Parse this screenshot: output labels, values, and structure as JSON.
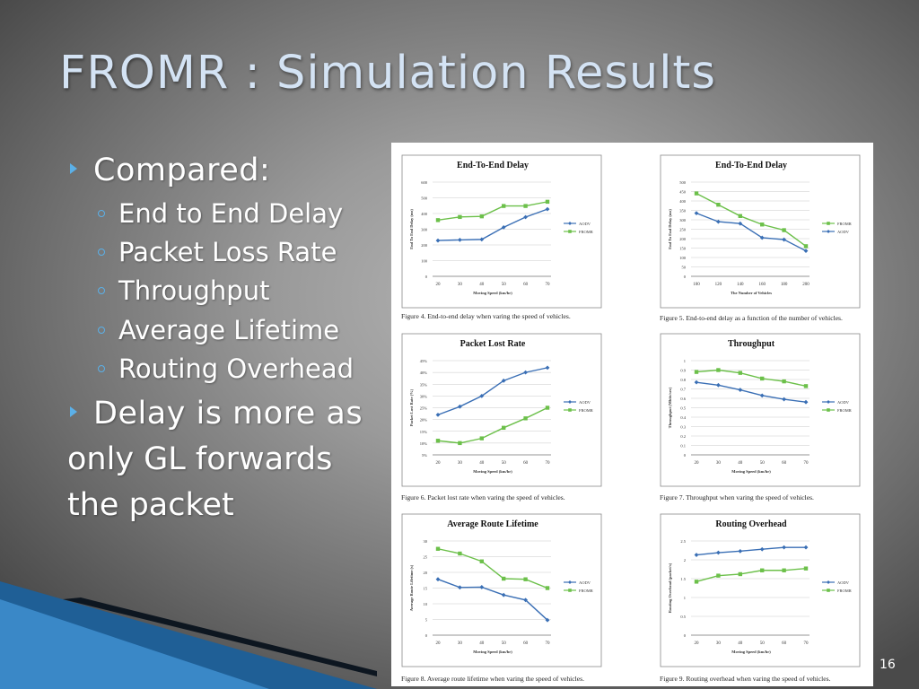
{
  "slide": {
    "title": "FROMR : Simulation Results",
    "bullets": [
      {
        "text": "Compared:",
        "subs": [
          "End to End Delay",
          "Packet Loss Rate",
          "Throughput",
          "Average Lifetime",
          "Routing Overhead"
        ]
      },
      {
        "text": "Delay is more as",
        "continuation": [
          "only GL forwards",
          "the packet"
        ]
      }
    ],
    "page_number": "16"
  },
  "colors": {
    "title": "#d4e3f4",
    "bullet": "#5bb0e8",
    "aodv": "#3a6fb5",
    "fromr": "#6cc04a",
    "stripe": "#1f5f96"
  },
  "chart_data": [
    {
      "type": "line",
      "title": "End-To-End Delay",
      "xlabel": "Moving Speed (km/hr)",
      "ylabel": "End To End Delay (ms)",
      "x": [
        20,
        30,
        40,
        50,
        60,
        70
      ],
      "xticks": [
        "20",
        "30",
        "40",
        "50",
        "60",
        "70"
      ],
      "ylim": [
        0,
        600
      ],
      "yticks": [
        0,
        100,
        200,
        300,
        400,
        500,
        600
      ],
      "series": [
        {
          "name": "AODV",
          "values": [
            228,
            232,
            235,
            312,
            377,
            428
          ]
        },
        {
          "name": "FROMR",
          "values": [
            358,
            378,
            382,
            448,
            448,
            475
          ]
        }
      ],
      "legend": "right",
      "caption": "Figure 4.   End-to-end delay when varing the speed of vehicles."
    },
    {
      "type": "line",
      "title": "End-To-End Delay",
      "xlabel": "The Number of Vehicles",
      "ylabel": "End To End Delay (ms)",
      "x": [
        100,
        120,
        140,
        160,
        180,
        200
      ],
      "xticks": [
        "100",
        "120",
        "140",
        "160",
        "180",
        "200"
      ],
      "ylim": [
        0,
        500
      ],
      "yticks": [
        0,
        50,
        100,
        150,
        200,
        250,
        300,
        350,
        400,
        450,
        500
      ],
      "series": [
        {
          "name": "FROMR",
          "values": [
            440,
            380,
            320,
            275,
            245,
            160
          ]
        },
        {
          "name": "AODV",
          "values": [
            335,
            290,
            280,
            205,
            195,
            135
          ]
        }
      ],
      "legend": "right",
      "caption": "Figure 5.   End-to-end delay as a function of the number of vehicles."
    },
    {
      "type": "line",
      "title": "Packet Lost Rate",
      "xlabel": "Moving Speed (km/hr)",
      "ylabel": "Packet Lost Rate (%)",
      "x": [
        20,
        30,
        40,
        50,
        60,
        70
      ],
      "xticks": [
        "20",
        "30",
        "40",
        "50",
        "60",
        "70"
      ],
      "ylim": [
        5,
        45
      ],
      "yticks": [
        5,
        10,
        15,
        20,
        25,
        30,
        35,
        40,
        45
      ],
      "ytick_labels": [
        "5%",
        "10%",
        "15%",
        "20%",
        "25%",
        "30%",
        "35%",
        "40%",
        "45%"
      ],
      "series": [
        {
          "name": "AODV",
          "values": [
            22,
            25.5,
            30,
            36.5,
            40,
            42
          ]
        },
        {
          "name": "FROMR",
          "values": [
            11,
            10,
            12,
            16.5,
            20.5,
            25
          ]
        }
      ],
      "legend": "right",
      "caption": "Figure 6.   Packet lost rate when varing the speed of vehicles."
    },
    {
      "type": "line",
      "title": "Throughput",
      "xlabel": "Moving Speed (km/hr)",
      "ylabel": "Throughput (Mbits/sec)",
      "x": [
        20,
        30,
        40,
        50,
        60,
        70
      ],
      "xticks": [
        "20",
        "30",
        "40",
        "50",
        "60",
        "70"
      ],
      "ylim": [
        0,
        1
      ],
      "yticks": [
        0,
        0.1,
        0.2,
        0.3,
        0.4,
        0.5,
        0.6,
        0.7,
        0.8,
        0.9,
        1
      ],
      "ytick_labels": [
        "0",
        "0.1",
        "0.2",
        "0.3",
        "0.4",
        "0.5",
        "0.6",
        "0.7",
        "0.8",
        "0.9",
        "1"
      ],
      "series": [
        {
          "name": "AODV",
          "values": [
            0.77,
            0.74,
            0.69,
            0.63,
            0.59,
            0.56
          ]
        },
        {
          "name": "FROMR",
          "values": [
            0.88,
            0.9,
            0.87,
            0.81,
            0.78,
            0.73
          ]
        }
      ],
      "legend": "right",
      "caption": "Figure 7.   Throughput when varing the speed of vehicles."
    },
    {
      "type": "line",
      "title": "Average Route Lifetime",
      "xlabel": "Moving Speed (km/hr)",
      "ylabel": "Average Route Lifetime (s)",
      "x": [
        20,
        30,
        40,
        50,
        60,
        70
      ],
      "xticks": [
        "20",
        "30",
        "40",
        "50",
        "60",
        "70"
      ],
      "ylim": [
        0,
        30
      ],
      "yticks": [
        0,
        5,
        10,
        15,
        20,
        25,
        30
      ],
      "series": [
        {
          "name": "AODV",
          "values": [
            17.8,
            15.2,
            15.3,
            12.8,
            11.2,
            4.8
          ]
        },
        {
          "name": "FROMR",
          "values": [
            27.5,
            26,
            23.5,
            18,
            17.8,
            15
          ]
        }
      ],
      "legend": "right",
      "caption": "Figure 8.   Average route lifetime when varing the speed of vehicles."
    },
    {
      "type": "line",
      "title": "Routing Overhead",
      "xlabel": "Moving Speed (km/hr)",
      "ylabel": "Routing Overhead (packet/s)",
      "x": [
        20,
        30,
        40,
        50,
        60,
        70
      ],
      "xticks": [
        "20",
        "30",
        "40",
        "50",
        "60",
        "70"
      ],
      "ylim": [
        0,
        2.5
      ],
      "yticks": [
        0,
        0.5,
        1,
        1.5,
        2,
        2.5
      ],
      "ytick_labels": [
        "0",
        "0.5",
        "1",
        "1.5",
        "2",
        "2.5"
      ],
      "series": [
        {
          "name": "AODV",
          "values": [
            2.13,
            2.19,
            2.23,
            2.28,
            2.33,
            2.33
          ]
        },
        {
          "name": "FROMR",
          "values": [
            1.42,
            1.58,
            1.62,
            1.72,
            1.72,
            1.77
          ]
        }
      ],
      "legend": "right",
      "caption": "Figure 9.   Routing overhead when varing the speed of vehicles."
    }
  ]
}
